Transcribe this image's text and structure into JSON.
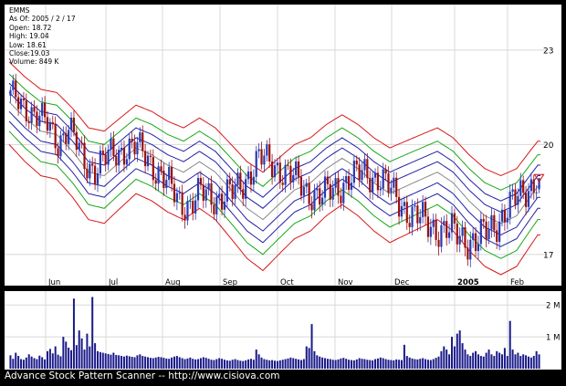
{
  "header": {
    "symbol": "EMMS",
    "as_of": "As Of: 2005 / 2 / 17",
    "open": "Open: 18.72",
    "high": "High: 19.04",
    "low": "Low: 18.61",
    "close": "Close:19.03",
    "volume": "Volume: 849 K"
  },
  "footer": {
    "text": "Advance Stock Pattern Scanner -- http://www.cisiova.com"
  },
  "colors": {
    "background": "#000000",
    "panel": "#ffffff",
    "band_outer": "#d81818",
    "band_mid": "#18a818",
    "band_inner": "#2020a8",
    "band_center": "#888888",
    "candle_up": "#2a3ab0",
    "candle_down": "#9a1010",
    "volume_bar": "#1a1a8a"
  },
  "chart_data": {
    "type": "candlestick",
    "x_tick_labels": [
      "Jun",
      "Jul",
      "Aug",
      "Sep",
      "Oct",
      "Nov",
      "Dec",
      "2005",
      "Feb"
    ],
    "price_axis": {
      "ticks": [
        17,
        20,
        23
      ],
      "range": [
        16.3,
        24.5
      ],
      "scale": "log"
    },
    "volume_axis": {
      "ticks": [
        "1 M",
        "2 M"
      ],
      "tick_values": [
        1,
        2
      ],
      "range": [
        0,
        2.35
      ],
      "unit": "M"
    },
    "grid": true,
    "bands": {
      "offsets": [
        -1.3,
        -0.9,
        -0.6,
        -0.3,
        0.0,
        0.3,
        0.6,
        0.9,
        1.3
      ],
      "center": [
        [
          0,
          21.3
        ],
        [
          6,
          20.8
        ],
        [
          12,
          20.4
        ],
        [
          18,
          20.3
        ],
        [
          24,
          19.8
        ],
        [
          30,
          19.2
        ],
        [
          36,
          19.1
        ],
        [
          42,
          19.5
        ],
        [
          48,
          19.9
        ],
        [
          54,
          19.7
        ],
        [
          60,
          19.4
        ],
        [
          66,
          19.2
        ],
        [
          72,
          19.5
        ],
        [
          78,
          19.2
        ],
        [
          84,
          18.7
        ],
        [
          90,
          18.2
        ],
        [
          96,
          17.9
        ],
        [
          102,
          18.3
        ],
        [
          108,
          18.7
        ],
        [
          114,
          18.9
        ],
        [
          120,
          19.3
        ],
        [
          126,
          19.6
        ],
        [
          132,
          19.3
        ],
        [
          138,
          18.9
        ],
        [
          144,
          18.6
        ],
        [
          150,
          18.8
        ],
        [
          156,
          19.0
        ],
        [
          162,
          19.2
        ],
        [
          168,
          18.9
        ],
        [
          174,
          18.4
        ],
        [
          180,
          18.0
        ],
        [
          186,
          17.8
        ],
        [
          192,
          18.0
        ],
        [
          198,
          18.6
        ],
        [
          200,
          18.8
        ]
      ]
    },
    "price_control_points": [
      [
        0,
        21.5
      ],
      [
        8,
        21.0
      ],
      [
        14,
        20.6
      ],
      [
        18,
        20.1
      ],
      [
        22,
        20.5
      ],
      [
        28,
        19.5
      ],
      [
        32,
        19.3
      ],
      [
        38,
        19.7
      ],
      [
        44,
        19.9
      ],
      [
        48,
        19.9
      ],
      [
        52,
        19.6
      ],
      [
        58,
        19.0
      ],
      [
        64,
        18.4
      ],
      [
        68,
        18.3
      ],
      [
        72,
        18.6
      ],
      [
        78,
        18.5
      ],
      [
        84,
        18.6
      ],
      [
        88,
        18.9
      ],
      [
        94,
        19.6
      ],
      [
        100,
        19.4
      ],
      [
        106,
        19.1
      ],
      [
        112,
        18.7
      ],
      [
        118,
        18.5
      ],
      [
        124,
        18.8
      ],
      [
        128,
        19.0
      ],
      [
        134,
        19.2
      ],
      [
        140,
        19.0
      ],
      [
        146,
        18.5
      ],
      [
        152,
        18.0
      ],
      [
        158,
        17.8
      ],
      [
        164,
        17.6
      ],
      [
        170,
        17.5
      ],
      [
        176,
        17.3
      ],
      [
        182,
        17.7
      ],
      [
        186,
        18.0
      ],
      [
        192,
        18.5
      ],
      [
        196,
        18.8
      ],
      [
        200,
        19.03
      ]
    ],
    "volume": [
      0.42,
      0.31,
      0.5,
      0.4,
      0.3,
      0.28,
      0.35,
      0.45,
      0.38,
      0.33,
      0.3,
      0.41,
      0.36,
      0.29,
      0.55,
      0.62,
      0.48,
      0.7,
      0.44,
      0.39,
      1.0,
      0.85,
      0.66,
      0.58,
      2.2,
      0.74,
      1.2,
      0.95,
      0.6,
      1.1,
      0.7,
      2.25,
      0.8,
      0.55,
      0.52,
      0.5,
      0.48,
      0.46,
      0.44,
      0.5,
      0.43,
      0.42,
      0.4,
      0.38,
      0.41,
      0.39,
      0.37,
      0.36,
      0.42,
      0.45,
      0.4,
      0.38,
      0.36,
      0.34,
      0.33,
      0.35,
      0.37,
      0.36,
      0.34,
      0.32,
      0.31,
      0.35,
      0.38,
      0.4,
      0.36,
      0.33,
      0.3,
      0.32,
      0.35,
      0.31,
      0.29,
      0.3,
      0.33,
      0.36,
      0.34,
      0.31,
      0.28,
      0.27,
      0.3,
      0.33,
      0.31,
      0.28,
      0.26,
      0.25,
      0.28,
      0.3,
      0.27,
      0.25,
      0.24,
      0.26,
      0.29,
      0.31,
      0.28,
      0.6,
      0.45,
      0.35,
      0.3,
      0.28,
      0.26,
      0.27,
      0.25,
      0.24,
      0.26,
      0.28,
      0.3,
      0.32,
      0.35,
      0.33,
      0.31,
      0.29,
      0.27,
      0.3,
      0.7,
      0.65,
      1.4,
      0.55,
      0.42,
      0.38,
      0.35,
      0.33,
      0.31,
      0.3,
      0.28,
      0.27,
      0.29,
      0.32,
      0.34,
      0.31,
      0.28,
      0.27,
      0.26,
      0.29,
      0.33,
      0.31,
      0.3,
      0.28,
      0.27,
      0.26,
      0.3,
      0.32,
      0.35,
      0.33,
      0.3,
      0.28,
      0.27,
      0.26,
      0.29,
      0.28,
      0.27,
      0.75,
      0.4,
      0.35,
      0.32,
      0.3,
      0.29,
      0.31,
      0.33,
      0.3,
      0.28,
      0.27,
      0.3,
      0.34,
      0.38,
      0.55,
      0.7,
      0.6,
      0.45,
      1.0,
      0.7,
      1.1,
      1.2,
      0.8,
      0.6,
      0.45,
      0.4,
      0.5,
      0.55,
      0.45,
      0.4,
      0.38,
      0.5,
      0.6,
      0.45,
      0.4,
      0.55,
      0.5,
      0.45,
      0.65,
      0.4,
      1.5,
      0.6,
      0.45,
      0.5,
      0.4,
      0.45,
      0.42,
      0.38,
      0.35,
      0.4,
      0.55,
      0.45
    ]
  }
}
